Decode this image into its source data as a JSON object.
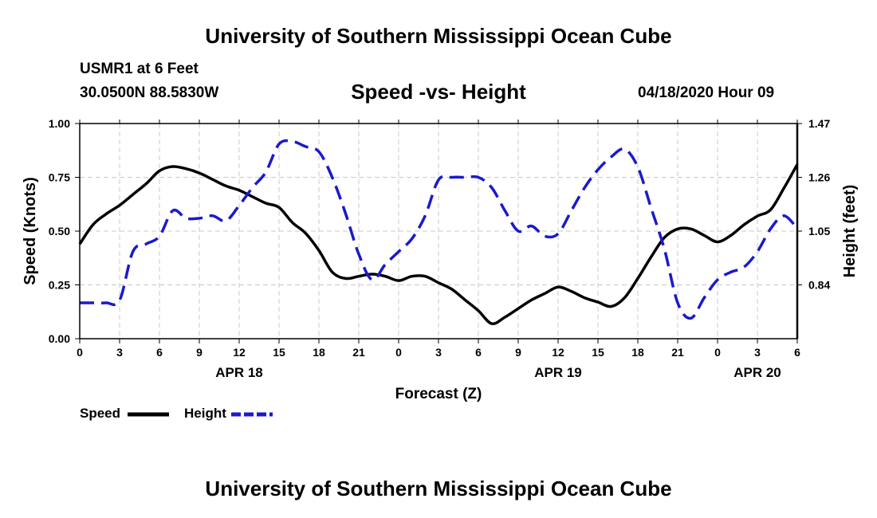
{
  "header": {
    "title": "University of Southern Mississippi Ocean Cube",
    "station": "USMR1 at 6 Feet",
    "coordinates": "30.0500N 88.5830W",
    "chart_title": "Speed -vs- Height",
    "datetime": "04/18/2020 Hour 09"
  },
  "footer": {
    "title": "University of Southern Mississippi Ocean Cube"
  },
  "legend": {
    "speed_label": "Speed",
    "height_label": "Height"
  },
  "colors": {
    "speed": "#000000",
    "height": "#1a1acc",
    "grid": "#c8c8c8"
  },
  "chart_data": {
    "type": "line",
    "title": "Speed -vs- Height",
    "xlabel": "Forecast (Z)",
    "ylabel": "Speed (Knots)",
    "y2label": "Height (feet)",
    "xlim": [
      0,
      54
    ],
    "ylim": [
      0,
      1.0
    ],
    "y2lim": [
      0.63,
      1.47
    ],
    "x_ticks": [
      0,
      3,
      6,
      9,
      12,
      15,
      18,
      21,
      24,
      27,
      30,
      33,
      36,
      39,
      42,
      45,
      48,
      51,
      54
    ],
    "x_tick_labels": [
      "0",
      "3",
      "6",
      "9",
      "12",
      "15",
      "18",
      "21",
      "0",
      "3",
      "6",
      "9",
      "12",
      "15",
      "18",
      "21",
      "0",
      "3",
      "6"
    ],
    "date_labels": [
      {
        "x": 12,
        "label": "APR 18"
      },
      {
        "x": 36,
        "label": "APR 19"
      },
      {
        "x": 51,
        "label": "APR 20"
      }
    ],
    "y_ticks": [
      0.0,
      0.25,
      0.5,
      0.75,
      1.0
    ],
    "y_tick_labels": [
      "0.00",
      "0.25",
      "0.50",
      "0.75",
      "1.00"
    ],
    "y2_ticks": [
      0.84,
      1.05,
      1.26,
      1.47
    ],
    "y2_tick_labels": [
      "0.84",
      "1.05",
      "1.26",
      "1.47"
    ],
    "grid": true,
    "series": [
      {
        "name": "Speed",
        "axis": "left",
        "style": "solid",
        "x": [
          0,
          1,
          2,
          3,
          4,
          5,
          6,
          7,
          8,
          9,
          10,
          11,
          12,
          13,
          14,
          15,
          16,
          17,
          18,
          19,
          20,
          21,
          22,
          23,
          24,
          25,
          26,
          27,
          28,
          29,
          30,
          31,
          32,
          33,
          34,
          35,
          36,
          37,
          38,
          39,
          40,
          41,
          42,
          43,
          44,
          45,
          46,
          47,
          48,
          49,
          50,
          51,
          52,
          53,
          54
        ],
        "values": [
          0.44,
          0.53,
          0.58,
          0.62,
          0.67,
          0.72,
          0.78,
          0.8,
          0.79,
          0.77,
          0.74,
          0.71,
          0.69,
          0.66,
          0.63,
          0.61,
          0.54,
          0.49,
          0.41,
          0.31,
          0.28,
          0.29,
          0.3,
          0.29,
          0.27,
          0.29,
          0.29,
          0.26,
          0.23,
          0.18,
          0.13,
          0.07,
          0.1,
          0.14,
          0.18,
          0.21,
          0.24,
          0.22,
          0.19,
          0.17,
          0.15,
          0.19,
          0.28,
          0.38,
          0.47,
          0.51,
          0.51,
          0.48,
          0.45,
          0.48,
          0.53,
          0.57,
          0.6,
          0.7,
          0.81
        ]
      },
      {
        "name": "Height",
        "axis": "right",
        "style": "dashed",
        "x": [
          0,
          1,
          2,
          3,
          4,
          5,
          6,
          7,
          8,
          9,
          10,
          11,
          12,
          13,
          14,
          15,
          16,
          17,
          18,
          19,
          20,
          21,
          22,
          23,
          24,
          25,
          26,
          27,
          28,
          29,
          30,
          31,
          32,
          33,
          34,
          35,
          36,
          37,
          38,
          39,
          40,
          41,
          42,
          43,
          44,
          45,
          46,
          47,
          48,
          49,
          50,
          51,
          52,
          53,
          54
        ],
        "values": [
          0.77,
          0.77,
          0.77,
          0.78,
          0.97,
          1.0,
          1.03,
          1.13,
          1.1,
          1.1,
          1.11,
          1.09,
          1.15,
          1.22,
          1.28,
          1.39,
          1.4,
          1.38,
          1.36,
          1.26,
          1.12,
          0.96,
          0.86,
          0.92,
          0.97,
          1.02,
          1.11,
          1.25,
          1.26,
          1.26,
          1.26,
          1.22,
          1.13,
          1.05,
          1.07,
          1.03,
          1.04,
          1.13,
          1.22,
          1.29,
          1.34,
          1.37,
          1.3,
          1.14,
          0.98,
          0.77,
          0.71,
          0.79,
          0.86,
          0.89,
          0.91,
          0.97,
          1.06,
          1.11,
          1.06
        ]
      }
    ]
  }
}
